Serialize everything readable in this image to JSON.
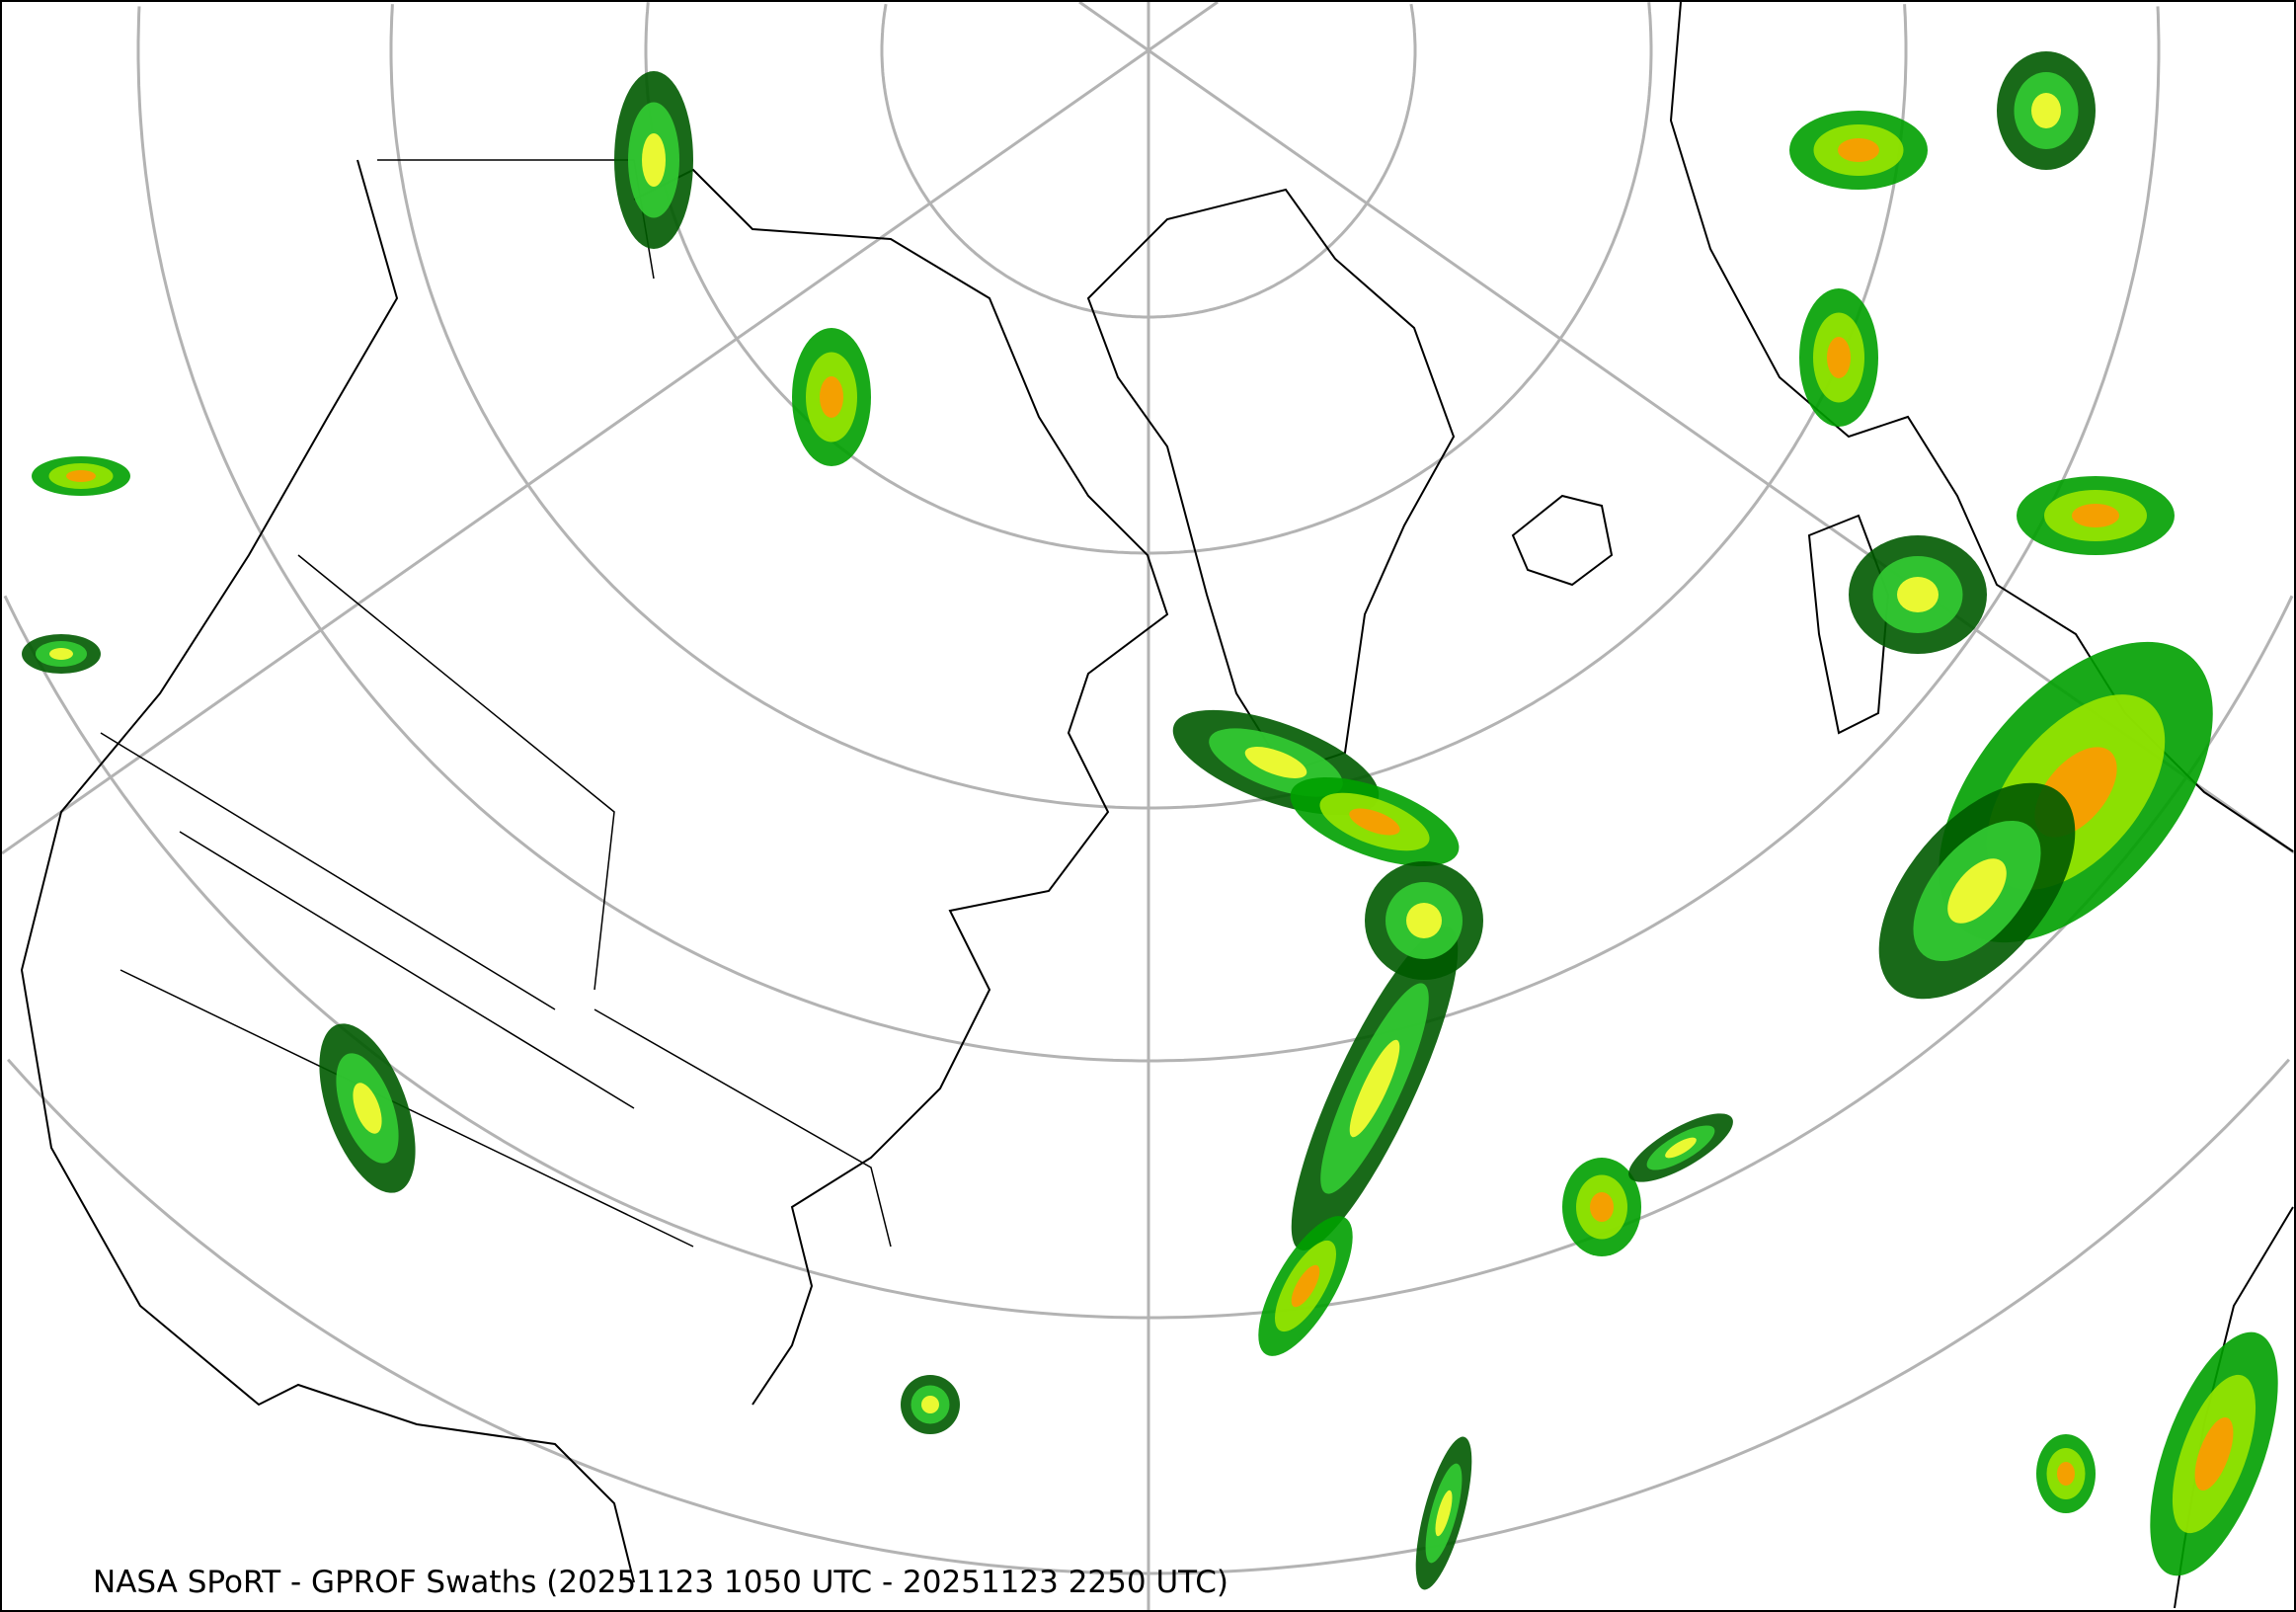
{
  "title": "NASA SPoRT - GPROF Swaths (20251123 1050 UTC - 20251123 2250 UTC)",
  "map": {
    "projection": "polar stereographic (north)",
    "graticule_color": "#b3b3b3",
    "coastline_color": "#000000",
    "precip_colors": [
      "#005a00",
      "#00a000",
      "#33cc33",
      "#99e600",
      "#ffff33",
      "#ff9900",
      "#ff2200"
    ]
  }
}
